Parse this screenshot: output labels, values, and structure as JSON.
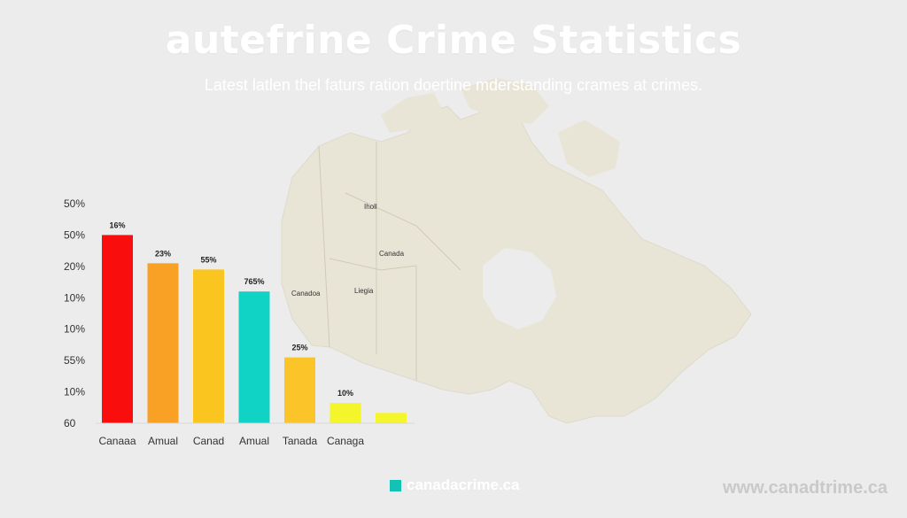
{
  "title": "autefrine Crime Statistics",
  "subtitle": "Latest latlen thel faturs ration doertine mderstanding crames at crimes.",
  "map": {
    "labels": [
      "Iholl",
      "Canada",
      "Canadoa",
      "Liegia"
    ]
  },
  "footer": {
    "brand": "canadacrime.ca",
    "url": "www.canadtrime.ca"
  },
  "colors": {
    "background": "#ececec",
    "map_fill": "#e9e5d7",
    "brand_accent": "#13c2b4"
  },
  "chart_data": {
    "type": "bar",
    "title": "",
    "xlabel": "",
    "ylabel": "",
    "y_tick_labels": [
      "50%",
      "50%",
      "20%",
      "10%",
      "10%",
      "55%",
      "10%",
      "60"
    ],
    "ylim": [
      0,
      7
    ],
    "categories": [
      "Canaaa",
      "Amual",
      "Canad",
      "Amual",
      "Tanada",
      "Canaga",
      ""
    ],
    "values": [
      6.0,
      5.1,
      4.9,
      4.2,
      2.1,
      0.65,
      0.33
    ],
    "data_labels": [
      "16%",
      "23%",
      "55%",
      "765%",
      "25%",
      "10%",
      ""
    ],
    "colors": [
      "#f90d0d",
      "#f8a124",
      "#fbc51f",
      "#10d3c5",
      "#fbc52a",
      "#f4f52a",
      "#f4f52a"
    ],
    "grid": false,
    "legend": "none"
  }
}
